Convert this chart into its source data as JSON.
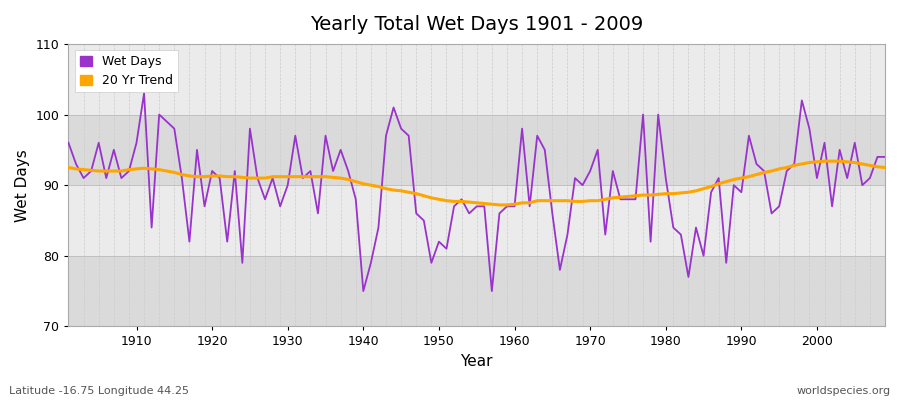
{
  "title": "Yearly Total Wet Days 1901 - 2009",
  "xlabel": "Year",
  "ylabel": "Wet Days",
  "ylim": [
    70,
    110
  ],
  "xlim": [
    1901,
    2009
  ],
  "yticks": [
    70,
    80,
    90,
    100,
    110
  ],
  "xticks": [
    1910,
    1920,
    1930,
    1940,
    1950,
    1960,
    1970,
    1980,
    1990,
    2000
  ],
  "wet_days_color": "#9933CC",
  "trend_color": "#FFA500",
  "fig_bg_color": "#FFFFFF",
  "plot_bg_color": "#E8E8E8",
  "band_color_dark": "#DADADA",
  "band_color_light": "#EBEBEB",
  "grid_color": "#FFFFFF",
  "subtitle_left": "Latitude -16.75 Longitude 44.25",
  "subtitle_right": "worldspecies.org",
  "legend_labels": [
    "Wet Days",
    "20 Yr Trend"
  ],
  "years": [
    1901,
    1902,
    1903,
    1904,
    1905,
    1906,
    1907,
    1908,
    1909,
    1910,
    1911,
    1912,
    1913,
    1914,
    1915,
    1916,
    1917,
    1918,
    1919,
    1920,
    1921,
    1922,
    1923,
    1924,
    1925,
    1926,
    1927,
    1928,
    1929,
    1930,
    1931,
    1932,
    1933,
    1934,
    1935,
    1936,
    1937,
    1938,
    1939,
    1940,
    1941,
    1942,
    1943,
    1944,
    1945,
    1946,
    1947,
    1948,
    1949,
    1950,
    1951,
    1952,
    1953,
    1954,
    1955,
    1956,
    1957,
    1958,
    1959,
    1960,
    1961,
    1962,
    1963,
    1964,
    1965,
    1966,
    1967,
    1968,
    1969,
    1970,
    1971,
    1972,
    1973,
    1974,
    1975,
    1976,
    1977,
    1978,
    1979,
    1980,
    1981,
    1982,
    1983,
    1984,
    1985,
    1986,
    1987,
    1988,
    1989,
    1990,
    1991,
    1992,
    1993,
    1994,
    1995,
    1996,
    1997,
    1998,
    1999,
    2000,
    2001,
    2002,
    2003,
    2004,
    2005,
    2006,
    2007,
    2008,
    2009
  ],
  "wet_days": [
    96,
    93,
    91,
    92,
    96,
    91,
    95,
    91,
    92,
    96,
    103,
    84,
    100,
    99,
    98,
    91,
    82,
    95,
    87,
    92,
    91,
    82,
    92,
    79,
    98,
    91,
    88,
    91,
    87,
    90,
    97,
    91,
    92,
    86,
    97,
    92,
    95,
    92,
    88,
    75,
    79,
    84,
    97,
    101,
    98,
    97,
    86,
    85,
    79,
    82,
    81,
    87,
    88,
    86,
    87,
    87,
    75,
    86,
    87,
    87,
    98,
    87,
    97,
    95,
    86,
    78,
    83,
    91,
    90,
    92,
    95,
    83,
    92,
    88,
    88,
    88,
    100,
    82,
    100,
    91,
    84,
    83,
    77,
    84,
    80,
    89,
    91,
    79,
    90,
    89,
    97,
    93,
    92,
    86,
    87,
    92,
    93,
    102,
    98,
    91,
    96,
    87,
    95,
    91,
    96,
    90,
    91,
    94,
    94
  ],
  "trend": [
    92.5,
    92.3,
    92.2,
    92.1,
    92.0,
    92.0,
    92.0,
    92.0,
    92.2,
    92.3,
    92.4,
    92.3,
    92.2,
    92.0,
    91.8,
    91.5,
    91.3,
    91.2,
    91.2,
    91.3,
    91.3,
    91.2,
    91.2,
    91.1,
    91.0,
    91.0,
    91.0,
    91.2,
    91.2,
    91.2,
    91.2,
    91.2,
    91.2,
    91.2,
    91.2,
    91.1,
    91.0,
    90.8,
    90.5,
    90.2,
    90.0,
    89.8,
    89.5,
    89.3,
    89.2,
    89.0,
    88.8,
    88.5,
    88.2,
    88.0,
    87.8,
    87.7,
    87.7,
    87.6,
    87.5,
    87.4,
    87.3,
    87.2,
    87.2,
    87.3,
    87.5,
    87.5,
    87.8,
    87.8,
    87.8,
    87.8,
    87.8,
    87.7,
    87.7,
    87.8,
    87.8,
    88.0,
    88.2,
    88.3,
    88.4,
    88.5,
    88.6,
    88.6,
    88.7,
    88.8,
    88.8,
    88.9,
    89.0,
    89.2,
    89.5,
    89.8,
    90.2,
    90.5,
    90.8,
    91.0,
    91.2,
    91.5,
    91.8,
    92.0,
    92.3,
    92.5,
    92.8,
    93.0,
    93.2,
    93.3,
    93.4,
    93.4,
    93.4,
    93.3,
    93.2,
    93.0,
    92.8,
    92.6,
    92.5
  ]
}
